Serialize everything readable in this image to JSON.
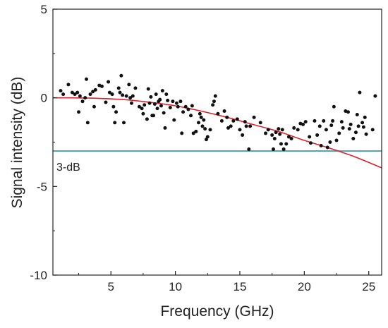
{
  "chart_data": {
    "type": "scatter",
    "title": "",
    "xlabel": "Frequency (GHz)",
    "ylabel": "Signal intensity (dB)",
    "xlim": [
      0.5,
      26
    ],
    "ylim": [
      -10,
      5
    ],
    "xticks": [
      5,
      10,
      15,
      20,
      25
    ],
    "yticks": [
      -10,
      -5,
      0,
      5
    ],
    "grid": false,
    "legend": "none",
    "colors": {
      "points": "#111111",
      "fit": "#e0202a",
      "threshold": "#2f8fa0",
      "axis": "#222222"
    },
    "threshold": {
      "y": -3,
      "label": "3-dB"
    },
    "fit_curve": {
      "x": [
        0.5,
        2,
        4,
        6,
        8,
        10,
        12,
        14,
        16,
        18,
        20,
        22,
        24,
        26
      ],
      "y": [
        0.0,
        0.0,
        -0.03,
        -0.1,
        -0.25,
        -0.45,
        -0.75,
        -1.1,
        -1.5,
        -1.9,
        -2.4,
        -2.85,
        -3.35,
        -3.95
      ]
    },
    "points": [
      [
        1.1,
        0.4
      ],
      [
        1.3,
        0.2
      ],
      [
        1.7,
        0.75
      ],
      [
        2.0,
        0.3
      ],
      [
        2.2,
        0.2
      ],
      [
        2.4,
        0.3
      ],
      [
        2.5,
        -0.8
      ],
      [
        2.6,
        0.1
      ],
      [
        2.8,
        -0.2
      ],
      [
        3.0,
        0.0
      ],
      [
        3.1,
        1.05
      ],
      [
        3.2,
        -1.4
      ],
      [
        3.4,
        0.2
      ],
      [
        3.6,
        0.35
      ],
      [
        3.7,
        -0.5
      ],
      [
        3.8,
        0.45
      ],
      [
        4.1,
        0.7
      ],
      [
        4.3,
        0.65
      ],
      [
        4.6,
        -0.25
      ],
      [
        4.8,
        0.9
      ],
      [
        4.9,
        0.3
      ],
      [
        5.1,
        0.2
      ],
      [
        5.2,
        -0.5
      ],
      [
        5.4,
        -0.8
      ],
      [
        5.3,
        -1.4
      ],
      [
        5.6,
        0.55
      ],
      [
        5.7,
        0.3
      ],
      [
        5.8,
        1.25
      ],
      [
        5.9,
        0.15
      ],
      [
        6.0,
        -1.4
      ],
      [
        6.2,
        0.1
      ],
      [
        6.4,
        0.75
      ],
      [
        6.5,
        0.0
      ],
      [
        6.6,
        -0.3
      ],
      [
        6.7,
        0.1
      ],
      [
        6.9,
        0.55
      ],
      [
        7.2,
        -0.5
      ],
      [
        7.4,
        -0.6
      ],
      [
        7.5,
        -0.9
      ],
      [
        7.6,
        -0.4
      ],
      [
        7.8,
        -1.2
      ],
      [
        7.9,
        0.5
      ],
      [
        8.0,
        -0.3
      ],
      [
        8.1,
        0.05
      ],
      [
        8.2,
        -1.0
      ],
      [
        8.3,
        -1.0
      ],
      [
        8.4,
        -0.35
      ],
      [
        8.5,
        0.2
      ],
      [
        8.6,
        -0.6
      ],
      [
        8.7,
        -0.2
      ],
      [
        8.8,
        -0.1
      ],
      [
        8.9,
        -0.45
      ],
      [
        9.0,
        0.4
      ],
      [
        9.1,
        -0.85
      ],
      [
        9.2,
        -1.7
      ],
      [
        9.3,
        0.2
      ],
      [
        9.4,
        -0.15
      ],
      [
        9.6,
        -0.55
      ],
      [
        9.8,
        -0.2
      ],
      [
        9.9,
        -1.25
      ],
      [
        10.1,
        -0.3
      ],
      [
        10.2,
        -0.5
      ],
      [
        10.4,
        -0.2
      ],
      [
        10.5,
        -2.0
      ],
      [
        10.6,
        -0.8
      ],
      [
        10.8,
        -0.5
      ],
      [
        11.0,
        -0.65
      ],
      [
        11.2,
        -1.0
      ],
      [
        11.3,
        -0.45
      ],
      [
        11.4,
        -2.0
      ],
      [
        11.6,
        -1.9
      ],
      [
        11.8,
        -1.4
      ],
      [
        11.9,
        -0.9
      ],
      [
        12.0,
        -1.1
      ],
      [
        12.1,
        -1.6
      ],
      [
        12.2,
        -1.25
      ],
      [
        12.3,
        -1.75
      ],
      [
        12.4,
        -2.35
      ],
      [
        12.5,
        -2.2
      ],
      [
        12.7,
        -1.8
      ],
      [
        12.9,
        -0.4
      ],
      [
        13.0,
        -0.2
      ],
      [
        13.1,
        0.1
      ],
      [
        13.3,
        -0.9
      ],
      [
        13.6,
        -1.3
      ],
      [
        13.8,
        -0.75
      ],
      [
        14.0,
        -1.1
      ],
      [
        14.1,
        -1.7
      ],
      [
        14.3,
        -1.6
      ],
      [
        14.5,
        -1.3
      ],
      [
        14.8,
        -1.2
      ],
      [
        15.0,
        -1.8
      ],
      [
        15.2,
        -2.1
      ],
      [
        15.4,
        -1.35
      ],
      [
        15.5,
        -1.6
      ],
      [
        15.7,
        -2.9
      ],
      [
        15.8,
        -1.6
      ],
      [
        16.1,
        -1.1
      ],
      [
        16.6,
        -1.4
      ],
      [
        17.0,
        -2.0
      ],
      [
        17.2,
        -1.8
      ],
      [
        17.5,
        -2.1
      ],
      [
        17.6,
        -2.9
      ],
      [
        17.7,
        -2.3
      ],
      [
        17.8,
        -1.95
      ],
      [
        18.0,
        -1.75
      ],
      [
        18.1,
        -2.05
      ],
      [
        18.2,
        -2.6
      ],
      [
        18.3,
        -1.8
      ],
      [
        18.4,
        -2.9
      ],
      [
        18.6,
        -2.6
      ],
      [
        18.8,
        -2.2
      ],
      [
        19.0,
        -2.3
      ],
      [
        19.2,
        -1.7
      ],
      [
        19.5,
        -1.8
      ],
      [
        19.7,
        -1.45
      ],
      [
        19.9,
        -1.5
      ],
      [
        20.1,
        -1.35
      ],
      [
        20.4,
        -2.2
      ],
      [
        20.5,
        -2.55
      ],
      [
        20.8,
        -1.3
      ],
      [
        21.0,
        -2.1
      ],
      [
        21.2,
        -1.6
      ],
      [
        21.3,
        -2.7
      ],
      [
        21.5,
        -1.3
      ],
      [
        21.7,
        -1.8
      ],
      [
        21.8,
        -2.8
      ],
      [
        22.0,
        -2.5
      ],
      [
        22.1,
        -1.55
      ],
      [
        22.2,
        -1.3
      ],
      [
        22.3,
        -0.5
      ],
      [
        22.5,
        -2.4
      ],
      [
        22.7,
        -2.0
      ],
      [
        22.9,
        -1.35
      ],
      [
        23.0,
        -1.7
      ],
      [
        23.2,
        -0.75
      ],
      [
        23.4,
        -0.8
      ],
      [
        23.5,
        -1.75
      ],
      [
        23.6,
        -1.5
      ],
      [
        23.8,
        -2.3
      ],
      [
        24.0,
        -1.95
      ],
      [
        24.1,
        -0.95
      ],
      [
        24.2,
        -1.6
      ],
      [
        24.3,
        0.3
      ],
      [
        24.5,
        -1.4
      ],
      [
        24.6,
        -1.65
      ],
      [
        24.7,
        -1.1
      ],
      [
        24.8,
        -2.05
      ],
      [
        25.3,
        -1.8
      ],
      [
        25.5,
        0.1
      ]
    ]
  }
}
